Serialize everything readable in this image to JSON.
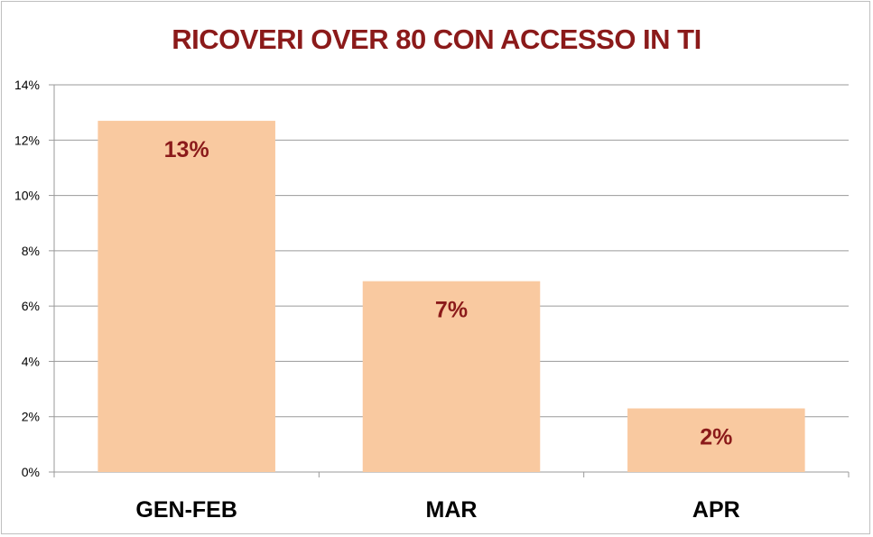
{
  "chart_data": {
    "type": "bar",
    "title": "RICOVERI OVER 80 CON ACCESSO IN TI",
    "categories": [
      "GEN-FEB",
      "MAR",
      "APR"
    ],
    "values": [
      12.7,
      6.9,
      2.3
    ],
    "data_labels": [
      "13%",
      "7%",
      "2%"
    ],
    "yticks": [
      "0%",
      "2%",
      "4%",
      "6%",
      "8%",
      "10%",
      "12%",
      "14%"
    ],
    "ylim": [
      0,
      14
    ],
    "grid": true,
    "legend": "none",
    "colors": {
      "bar": "#f9c9a0",
      "title": "#8b1a1a",
      "data_label": "#8b1a1a",
      "grid": "#9a9a9a"
    }
  }
}
